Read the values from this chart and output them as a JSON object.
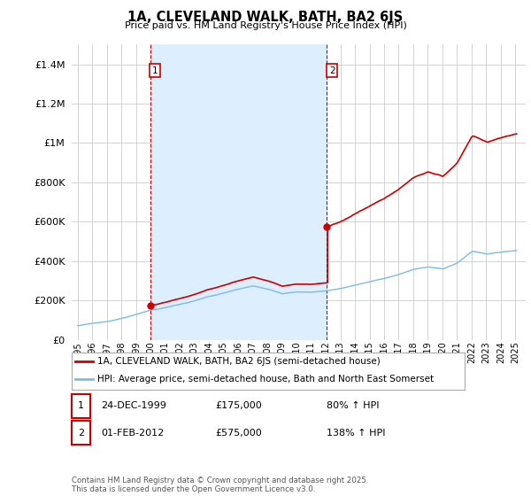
{
  "title": "1A, CLEVELAND WALK, BATH, BA2 6JS",
  "subtitle": "Price paid vs. HM Land Registry's House Price Index (HPI)",
  "ylim": [
    0,
    1500000
  ],
  "yticks": [
    0,
    200000,
    400000,
    600000,
    800000,
    1000000,
    1200000,
    1400000
  ],
  "sale1_year": 1999.97,
  "sale1_price": 175000,
  "sale2_year": 2012.08,
  "sale2_price": 575000,
  "hpi_color": "#7abbe8",
  "hpi_fill_color": "#ddeeff",
  "sale_color": "#cc0000",
  "vline_color": "#cc0000",
  "grid_color": "#cccccc",
  "legend1": "1A, CLEVELAND WALK, BATH, BA2 6JS (semi-detached house)",
  "legend2": "HPI: Average price, semi-detached house, Bath and North East Somerset",
  "footnote": "Contains HM Land Registry data © Crown copyright and database right 2025.\nThis data is licensed under the Open Government Licence v3.0.",
  "table": [
    {
      "num": "1",
      "date": "24-DEC-1999",
      "price": "£175,000",
      "pct": "80% ↑ HPI"
    },
    {
      "num": "2",
      "date": "01-FEB-2012",
      "price": "£575,000",
      "pct": "138% ↑ HPI"
    }
  ],
  "hpi_anchors_x": [
    1995,
    1996,
    1997,
    1998,
    1999,
    2000,
    2001,
    2002,
    2003,
    2004,
    2005,
    2006,
    2007,
    2008,
    2009,
    2010,
    2011,
    2012,
    2013,
    2014,
    2015,
    2016,
    2017,
    2018,
    2019,
    2020,
    2021,
    2022,
    2023,
    2024,
    2025
  ],
  "hpi_anchors_y": [
    72000,
    82000,
    92000,
    108000,
    128000,
    150000,
    163000,
    178000,
    195000,
    215000,
    233000,
    252000,
    270000,
    252000,
    228000,
    238000,
    238000,
    243000,
    255000,
    272000,
    289000,
    305000,
    328000,
    352000,
    368000,
    360000,
    390000,
    450000,
    435000,
    445000,
    455000
  ],
  "noise_seed": 17
}
